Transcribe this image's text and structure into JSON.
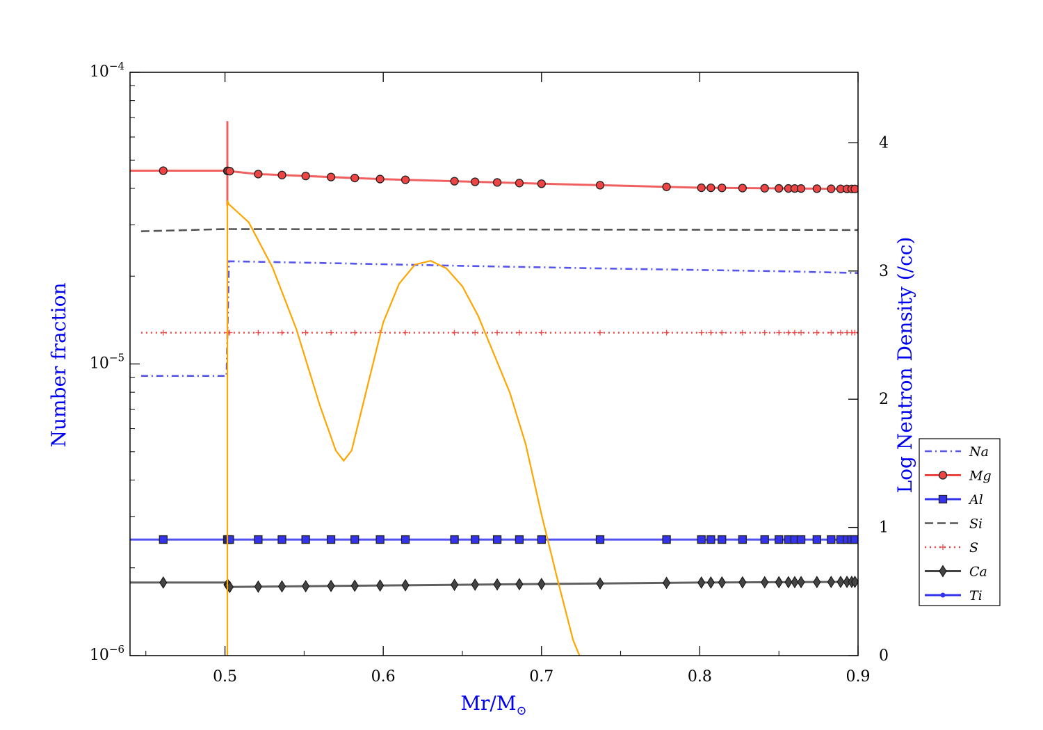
{
  "chart_data": {
    "type": "line",
    "xlabel": "Mr/M",
    "xlabel_symbol": "⊙",
    "ylabel_left": "Number fraction",
    "ylabel_right": "Log Neutron Density (/cc)",
    "xlim": [
      0.44,
      0.9
    ],
    "ylim_left": [
      1e-06,
      0.0001
    ],
    "yscale_left": "log",
    "ylim_right": [
      0,
      4.55
    ],
    "x_ticks": [
      "0.5",
      "0.6",
      "0.7",
      "0.8",
      "0.9"
    ],
    "y_left_ticks": [
      {
        "base": "10",
        "exp": "−6",
        "value": 1e-06
      },
      {
        "base": "10",
        "exp": "−5",
        "value": 1e-05
      },
      {
        "base": "10",
        "exp": "−4",
        "value": 0.0001
      }
    ],
    "y_right_ticks": [
      "0",
      "1",
      "2",
      "3",
      "4"
    ],
    "legend_position": "right",
    "marker_x": [
      0.461,
      0.5015,
      0.502,
      0.503,
      0.521,
      0.536,
      0.551,
      0.567,
      0.582,
      0.598,
      0.614,
      0.645,
      0.658,
      0.672,
      0.686,
      0.7,
      0.737,
      0.779,
      0.801,
      0.807,
      0.814,
      0.827,
      0.841,
      0.85,
      0.856,
      0.86,
      0.864,
      0.874,
      0.883,
      0.889,
      0.893,
      0.896,
      0.898
    ],
    "series": [
      {
        "name": "Na",
        "color": "#5555ee",
        "style": "dashdot",
        "marker": "none",
        "x": [
          0.447,
          0.501,
          0.5025,
          0.56,
          0.65,
          0.75,
          0.85,
          0.9
        ],
        "y": [
          9.1e-06,
          9.1e-06,
          2.25e-05,
          2.22e-05,
          2.17e-05,
          2.12e-05,
          2.08e-05,
          2.05e-05
        ]
      },
      {
        "name": "Mg",
        "color": "#ee4444",
        "style": "solid",
        "marker": "circle",
        "x": [
          0.44,
          0.5,
          0.52,
          0.6,
          0.7,
          0.8,
          0.9
        ],
        "y": [
          4.6e-05,
          4.6e-05,
          4.48e-05,
          4.3e-05,
          4.15e-05,
          4.02e-05,
          3.98e-05
        ],
        "spike_x": 0.5015,
        "spike_y": [
          3.5e-05,
          6.8e-05
        ]
      },
      {
        "name": "Al",
        "color": "#3333ee",
        "style": "solid",
        "marker": "square",
        "x": [
          0.44,
          0.9
        ],
        "y": [
          2.5e-06,
          2.5e-06
        ]
      },
      {
        "name": "Si",
        "color": "#555555",
        "style": "dashed",
        "marker": "none",
        "x": [
          0.447,
          0.5,
          0.9
        ],
        "y": [
          2.85e-05,
          2.9e-05,
          2.88e-05
        ]
      },
      {
        "name": "S",
        "color": "#ee4444",
        "style": "dotted",
        "marker": "plus",
        "x": [
          0.447,
          0.9
        ],
        "y": [
          1.28e-05,
          1.28e-05
        ]
      },
      {
        "name": "Ca",
        "color": "#444444",
        "style": "solid",
        "marker": "diamond",
        "x": [
          0.44,
          0.5,
          0.503,
          0.6,
          0.7,
          0.8,
          0.9
        ],
        "y": [
          1.78e-06,
          1.78e-06,
          1.72e-06,
          1.74e-06,
          1.76e-06,
          1.78e-06,
          1.79e-06
        ]
      },
      {
        "name": "Ti",
        "color": "#3333ee",
        "style": "solid",
        "marker": "dot",
        "x": [],
        "y": []
      }
    ],
    "neutron_density": {
      "axis": "right",
      "color": "#ffa500",
      "x": [
        0.5015,
        0.5015,
        0.5025,
        0.515,
        0.53,
        0.545,
        0.56,
        0.57,
        0.575,
        0.58,
        0.59,
        0.6,
        0.61,
        0.62,
        0.63,
        0.64,
        0.65,
        0.66,
        0.67,
        0.68,
        0.69,
        0.7,
        0.71,
        0.72,
        0.724
      ],
      "y": [
        0.0,
        3.55,
        3.52,
        3.38,
        3.03,
        2.55,
        1.95,
        1.6,
        1.52,
        1.6,
        2.1,
        2.6,
        2.9,
        3.05,
        3.08,
        3.02,
        2.88,
        2.65,
        2.35,
        2.05,
        1.65,
        1.1,
        0.6,
        0.12,
        0.0
      ]
    }
  }
}
